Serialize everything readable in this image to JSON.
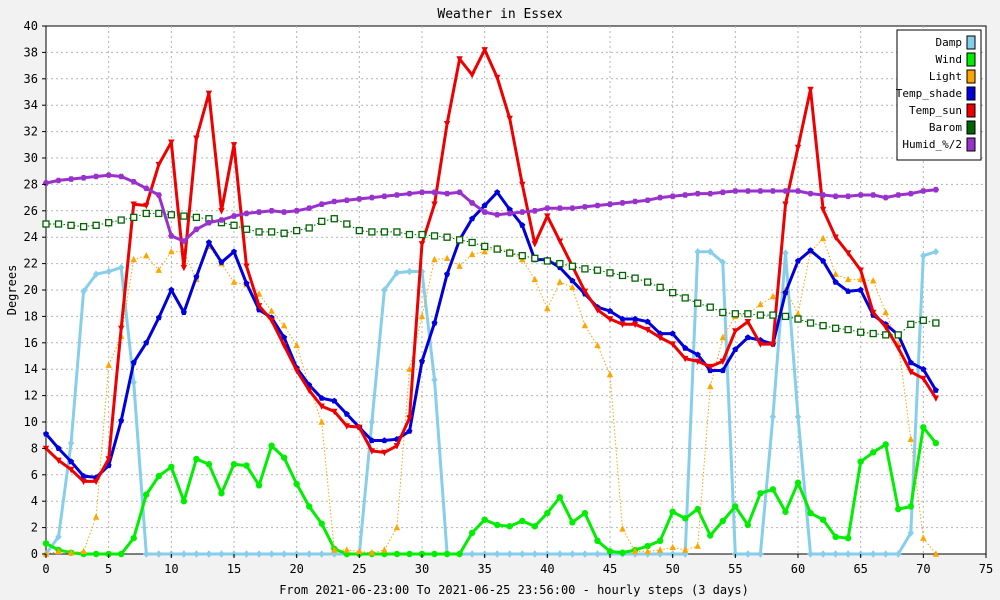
{
  "chart_data": {
    "type": "line",
    "title": "Weather in Essex",
    "xlabel": "From 2021-06-23:00 To 2021-06-25 23:56:00 - hourly steps (3 days)",
    "ylabel": "Degrees",
    "xlim": [
      0,
      75
    ],
    "ylim": [
      0,
      40
    ],
    "xticks": [
      0,
      5,
      10,
      15,
      20,
      25,
      30,
      35,
      40,
      45,
      50,
      55,
      60,
      65,
      70,
      75
    ],
    "yticks": [
      0,
      2,
      4,
      6,
      8,
      10,
      12,
      14,
      16,
      18,
      20,
      22,
      24,
      26,
      28,
      30,
      32,
      34,
      36,
      38,
      40
    ],
    "grid": true,
    "legend_position": "top-right",
    "series": [
      {
        "name": "Damp",
        "color": "#87ceeb",
        "marker": "diamond",
        "width": 3,
        "values": [
          0,
          1.3,
          8.4,
          19.9,
          21.2,
          21.4,
          21.7,
          13,
          0,
          0,
          0,
          0,
          0,
          0,
          0,
          0,
          0,
          0,
          0,
          0,
          0,
          0,
          0,
          0,
          0,
          0,
          10,
          20,
          21.3,
          21.4,
          21.4,
          13.2,
          0,
          0,
          0,
          0,
          0,
          0,
          0,
          0,
          0,
          0,
          0,
          0,
          0,
          0,
          0,
          0,
          0,
          0,
          0,
          0,
          22.9,
          22.9,
          22.1,
          0,
          0,
          0,
          10.4,
          22.8,
          10.4,
          0,
          0,
          0,
          0,
          0,
          0,
          0,
          0,
          1.6,
          22.6,
          22.9
        ]
      },
      {
        "name": "Wind",
        "color": "#00ee00",
        "marker": "circle",
        "width": 3,
        "values": [
          0.8,
          0.3,
          0.1,
          0,
          0,
          0,
          0,
          1.2,
          4.5,
          5.9,
          6.6,
          4,
          7.2,
          6.8,
          4.6,
          6.8,
          6.7,
          5.2,
          8.2,
          7.3,
          5.3,
          3.6,
          2.3,
          0.4,
          0,
          0,
          0,
          0,
          0,
          0,
          0,
          0,
          0,
          0,
          1.6,
          2.6,
          2.2,
          2.1,
          2.5,
          2.1,
          3.1,
          4.3,
          2.4,
          3.1,
          1,
          0.2,
          0.1,
          0.3,
          0.6,
          1,
          3.2,
          2.7,
          3.4,
          1.4,
          2.5,
          3.6,
          2.2,
          4.6,
          4.9,
          3.2,
          5.4,
          3.1,
          2.6,
          1.3,
          1.2,
          7,
          7.7,
          8.3,
          3.4,
          3.6,
          9.6,
          8.4
        ]
      },
      {
        "name": "Light",
        "color": "#ffa500",
        "marker": "triangle",
        "width": 1,
        "dotted": true,
        "values": [
          0,
          0.2,
          0.1,
          0.2,
          2.8,
          14.3,
          16.5,
          22.3,
          22.6,
          21.5,
          22.9,
          22.9,
          20.8,
          23.3,
          22,
          20.6,
          20.4,
          19.7,
          18.4,
          17.3,
          15.8,
          12.7,
          10,
          0.3,
          0.3,
          0.2,
          0.1,
          0.3,
          2,
          14,
          18,
          22.3,
          22.4,
          21.8,
          22.7,
          22.9,
          23.2,
          22.9,
          22.3,
          20.8,
          18.6,
          20.6,
          20.2,
          17.3,
          15.8,
          13.6,
          1.9,
          0.2,
          0.2,
          0.3,
          0.5,
          0.3,
          0.6,
          12.7,
          16.4,
          18,
          18.2,
          18.9,
          19.5,
          20,
          18.2,
          22.9,
          23.9,
          21.2,
          20.8,
          20.8,
          20.7,
          18.3,
          15.9,
          8.7,
          1.2,
          0
        ]
      },
      {
        "name": "Temp_shade",
        "color": "#0000dd",
        "marker": "pentagon",
        "width": 3,
        "values": [
          9.1,
          8,
          7,
          5.9,
          5.8,
          6.7,
          10.1,
          14.5,
          16,
          17.9,
          20,
          18.3,
          21,
          23.6,
          22.1,
          22.9,
          20.5,
          18.5,
          17.9,
          16.4,
          14.1,
          12.8,
          11.8,
          11.6,
          10.6,
          9.6,
          8.6,
          8.6,
          8.7,
          9.3,
          14.6,
          17.5,
          21.2,
          23.8,
          25.4,
          26.4,
          27.4,
          26.1,
          24.9,
          22.3,
          22.3,
          21.7,
          20.7,
          19.7,
          18.7,
          18.4,
          17.8,
          17.8,
          17.6,
          16.7,
          16.7,
          15.6,
          15.1,
          13.9,
          13.9,
          15.5,
          16.4,
          16.2,
          15.9,
          19.8,
          22.2,
          23,
          22.2,
          20.6,
          19.9,
          20,
          18.1,
          17.4,
          16.6,
          14.5,
          14,
          12.4
        ]
      },
      {
        "name": "Temp_sun",
        "color": "#ee0000",
        "marker": "triangle-down",
        "width": 3,
        "values": [
          8,
          7.1,
          6.4,
          5.5,
          5.5,
          7.2,
          17.1,
          26.5,
          26.4,
          29.5,
          31.2,
          21.7,
          31.5,
          34.9,
          26,
          31,
          21.8,
          18.8,
          17.7,
          15.8,
          13.9,
          12.4,
          11.2,
          10.8,
          9.7,
          9.6,
          7.8,
          7.7,
          8.2,
          10.3,
          23.5,
          26.5,
          32.6,
          37.5,
          36.3,
          38.2,
          36.1,
          33,
          28,
          23.5,
          25.6,
          23.7,
          21.8,
          19.9,
          18.5,
          17.8,
          17.4,
          17.4,
          17,
          16.4,
          15.9,
          14.8,
          14.6,
          14.2,
          14.6,
          16.9,
          17.6,
          15.9,
          15.9,
          26.5,
          30.8,
          35.2,
          26.1,
          24,
          22.8,
          21.5,
          18.3,
          17.2,
          15.6,
          13.8,
          13.3,
          11.8
        ]
      },
      {
        "name": "Barom",
        "color": "#006400",
        "marker": "square",
        "width": 1,
        "dotted": true,
        "values": [
          25,
          25,
          24.9,
          24.8,
          24.9,
          25.1,
          25.3,
          25.5,
          25.8,
          25.8,
          25.7,
          25.6,
          25.5,
          25.4,
          25.1,
          24.9,
          24.6,
          24.4,
          24.4,
          24.3,
          24.5,
          24.7,
          25.2,
          25.4,
          25,
          24.5,
          24.4,
          24.4,
          24.4,
          24.2,
          24.2,
          24.1,
          24,
          23.8,
          23.6,
          23.3,
          23.1,
          22.8,
          22.6,
          22.4,
          22.2,
          22,
          21.8,
          21.6,
          21.5,
          21.3,
          21.1,
          20.9,
          20.6,
          20.2,
          19.8,
          19.4,
          19,
          18.7,
          18.3,
          18.2,
          18.2,
          18.1,
          18.1,
          18,
          17.8,
          17.5,
          17.3,
          17.1,
          17,
          16.8,
          16.7,
          16.6,
          16.6,
          17.4,
          17.7,
          17.5
        ]
      },
      {
        "name": "Humid_%/2",
        "color": "#9932cc",
        "marker": "hexagon",
        "width": 3,
        "values": [
          28.1,
          28.3,
          28.4,
          28.5,
          28.6,
          28.7,
          28.6,
          28.2,
          27.7,
          27.2,
          24.1,
          23.7,
          24.6,
          25.1,
          25.3,
          25.6,
          25.8,
          25.9,
          26,
          25.9,
          26,
          26.2,
          26.5,
          26.7,
          26.8,
          26.9,
          27,
          27.1,
          27.2,
          27.3,
          27.4,
          27.4,
          27.3,
          27.4,
          26.6,
          25.9,
          25.7,
          25.8,
          25.9,
          26,
          26.2,
          26.2,
          26.2,
          26.3,
          26.4,
          26.5,
          26.6,
          26.7,
          26.8,
          27,
          27.1,
          27.2,
          27.3,
          27.3,
          27.4,
          27.5,
          27.5,
          27.5,
          27.5,
          27.5,
          27.5,
          27.3,
          27.2,
          27.1,
          27.1,
          27.2,
          27.2,
          27,
          27.2,
          27.3,
          27.5,
          27.6
        ]
      }
    ]
  }
}
